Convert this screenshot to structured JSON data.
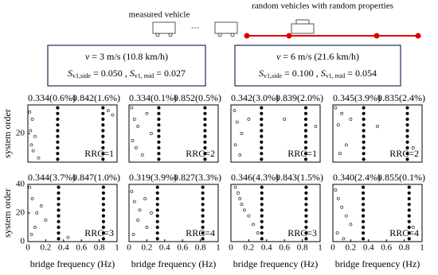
{
  "diagram": {
    "measured_label": "measured vehicle",
    "random_label": "random vehicles with random properties",
    "ellipsis": "···",
    "boxes": [
      {
        "line1": [
          "v",
          " = 3 m/s (10.8 km/h)"
        ],
        "line2": [
          "S",
          "v1,side",
          " = 0.050 , ",
          "S",
          "v1, mid",
          " = 0.027"
        ]
      },
      {
        "line1": [
          "v",
          " = 6 m/s (21.6 km/h)"
        ],
        "line2": [
          "S",
          "v1,side",
          " = 0.100 , ",
          "S",
          "v1, mid",
          " = 0.054"
        ]
      }
    ]
  },
  "chart_data": [
    {
      "type": "scatter",
      "ylabel": "system order",
      "annotations": [
        "0.334(0.6%)",
        "0.842(1.6%)"
      ],
      "rrc": "RRC=1",
      "xlim": [
        0,
        1
      ],
      "ylim": [
        0,
        40
      ],
      "yticks": [
        20
      ],
      "series": [
        {
          "marker": "filled",
          "color": "#000",
          "x": [
            0.334,
            0.334,
            0.334,
            0.334,
            0.334,
            0.334,
            0.334,
            0.334,
            0.334,
            0.334,
            0.842,
            0.842,
            0.842,
            0.842,
            0.842,
            0.842,
            0.842,
            0.842,
            0.842,
            0.842
          ],
          "y": [
            2,
            6,
            10,
            14,
            18,
            22,
            26,
            30,
            34,
            38,
            2,
            6,
            10,
            14,
            18,
            22,
            26,
            30,
            34,
            38
          ]
        },
        {
          "marker": "open",
          "color": "#000",
          "x": [
            0.02,
            0.05,
            0.03,
            0.08,
            0.04,
            0.06,
            0.12,
            0.9,
            0.95
          ],
          "y": [
            35,
            30,
            22,
            18,
            12,
            8,
            3,
            36,
            33
          ]
        }
      ]
    },
    {
      "type": "scatter",
      "annotations": [
        "0.334(0.1%)",
        "0.852(0.5%)"
      ],
      "rrc": "RRC=2",
      "xlim": [
        0,
        1
      ],
      "ylim": [
        0,
        40
      ],
      "series": [
        {
          "marker": "filled",
          "color": "#000",
          "x": [
            0.334,
            0.334,
            0.334,
            0.334,
            0.334,
            0.334,
            0.334,
            0.334,
            0.334,
            0.334,
            0.852,
            0.852,
            0.852,
            0.852,
            0.852,
            0.852,
            0.852,
            0.852,
            0.852,
            0.852
          ],
          "y": [
            2,
            6,
            10,
            14,
            18,
            22,
            26,
            30,
            34,
            38,
            2,
            6,
            10,
            14,
            18,
            22,
            26,
            30,
            34,
            38
          ]
        },
        {
          "marker": "open",
          "color": "#000",
          "x": [
            0.03,
            0.06,
            0.1,
            0.04,
            0.08,
            0.2,
            0.25,
            0.15
          ],
          "y": [
            38,
            30,
            25,
            15,
            10,
            34,
            20,
            5
          ]
        }
      ]
    },
    {
      "type": "scatter",
      "annotations": [
        "0.342(3.0%)",
        "0.839(2.0%)"
      ],
      "rrc": "RRC=1",
      "xlim": [
        0,
        1
      ],
      "ylim": [
        0,
        40
      ],
      "series": [
        {
          "marker": "filled",
          "color": "#000",
          "x": [
            0.342,
            0.342,
            0.342,
            0.342,
            0.342,
            0.342,
            0.342,
            0.342,
            0.342,
            0.342,
            0.839,
            0.839,
            0.839,
            0.839,
            0.839,
            0.839,
            0.839,
            0.839,
            0.839,
            0.839
          ],
          "y": [
            2,
            6,
            10,
            14,
            18,
            22,
            26,
            30,
            34,
            38,
            2,
            6,
            10,
            14,
            18,
            22,
            26,
            30,
            34,
            38
          ]
        },
        {
          "marker": "open",
          "color": "#000",
          "x": [
            0.04,
            0.07,
            0.12,
            0.05,
            0.2,
            0.1,
            0.6,
            0.95
          ],
          "y": [
            36,
            28,
            20,
            12,
            30,
            5,
            30,
            25
          ]
        }
      ]
    },
    {
      "type": "scatter",
      "annotations": [
        "0.345(3.9%)",
        "0.835(2.4%)"
      ],
      "rrc": "RRC=2",
      "xlim": [
        0,
        1
      ],
      "ylim": [
        0,
        40
      ],
      "series": [
        {
          "marker": "filled",
          "color": "#000",
          "x": [
            0.345,
            0.345,
            0.345,
            0.345,
            0.345,
            0.345,
            0.345,
            0.345,
            0.345,
            0.345,
            0.835,
            0.835,
            0.835,
            0.835,
            0.835,
            0.835,
            0.835,
            0.835,
            0.835,
            0.835
          ],
          "y": [
            2,
            6,
            10,
            14,
            18,
            22,
            26,
            30,
            34,
            38,
            2,
            6,
            10,
            14,
            18,
            22,
            26,
            30,
            34,
            38
          ]
        },
        {
          "marker": "open",
          "color": "#000",
          "x": [
            0.03,
            0.1,
            0.06,
            0.5,
            0.15,
            0.9,
            0.08,
            0.2
          ],
          "y": [
            38,
            34,
            26,
            25,
            12,
            10,
            6,
            30
          ]
        }
      ]
    },
    {
      "type": "scatter",
      "ylabel": "system order",
      "xlabel": "bridge frequency (Hz)",
      "annotations": [
        "0.344(3.7%)",
        "0.847(1.0%)"
      ],
      "rrc": "RRC=3",
      "xlim": [
        0,
        1
      ],
      "ylim": [
        0,
        40
      ],
      "yticks": [
        0,
        20,
        40
      ],
      "xticks": [
        0,
        0.2,
        0.4,
        0.6,
        0.8,
        1
      ],
      "series": [
        {
          "marker": "filled",
          "color": "#000",
          "x": [
            0.344,
            0.344,
            0.344,
            0.344,
            0.344,
            0.344,
            0.344,
            0.344,
            0.344,
            0.344,
            0.847,
            0.847,
            0.847,
            0.847,
            0.847,
            0.847,
            0.847,
            0.847,
            0.847,
            0.847
          ],
          "y": [
            2,
            6,
            10,
            14,
            18,
            22,
            26,
            30,
            34,
            38,
            2,
            6,
            10,
            14,
            18,
            22,
            26,
            30,
            34,
            38
          ]
        },
        {
          "marker": "open",
          "color": "#000",
          "x": [
            0.02,
            0.05,
            0.1,
            0.08,
            0.15,
            0.04,
            0.45,
            0.2
          ],
          "y": [
            38,
            30,
            20,
            10,
            25,
            5,
            3,
            15
          ]
        }
      ]
    },
    {
      "type": "scatter",
      "xlabel": "bridge frequency (Hz)",
      "annotations": [
        "0.319(3.9%)",
        "0.827(3.3%)"
      ],
      "rrc": "RRC=4",
      "xlim": [
        0,
        1
      ],
      "ylim": [
        0,
        40
      ],
      "xticks": [
        0,
        0.2,
        0.4,
        0.6,
        0.8,
        1
      ],
      "series": [
        {
          "marker": "filled",
          "color": "#000",
          "x": [
            0.319,
            0.319,
            0.319,
            0.319,
            0.319,
            0.319,
            0.319,
            0.319,
            0.319,
            0.319,
            0.827,
            0.827,
            0.827,
            0.827,
            0.827,
            0.827,
            0.827,
            0.827,
            0.827,
            0.827
          ],
          "y": [
            2,
            6,
            10,
            14,
            18,
            22,
            26,
            30,
            34,
            38,
            2,
            6,
            10,
            14,
            18,
            22,
            26,
            30,
            34,
            38
          ]
        },
        {
          "marker": "open",
          "color": "#000",
          "x": [
            0.03,
            0.06,
            0.12,
            0.18,
            0.2,
            0.1,
            0.05,
            0.25
          ],
          "y": [
            35,
            28,
            22,
            30,
            10,
            15,
            5,
            20
          ]
        }
      ]
    },
    {
      "type": "scatter",
      "xlabel": "bridge frequency (Hz)",
      "annotations": [
        "0.346(4.3%)",
        "0.843(1.5%)"
      ],
      "rrc": "RRC=3",
      "xlim": [
        0,
        1
      ],
      "ylim": [
        0,
        40
      ],
      "xticks": [
        0,
        0.2,
        0.4,
        0.6,
        0.8,
        1
      ],
      "series": [
        {
          "marker": "filled",
          "color": "#000",
          "x": [
            0.346,
            0.346,
            0.346,
            0.346,
            0.346,
            0.346,
            0.346,
            0.346,
            0.346,
            0.346,
            0.843,
            0.843,
            0.843,
            0.843,
            0.843,
            0.843,
            0.843,
            0.843,
            0.843,
            0.843
          ],
          "y": [
            2,
            6,
            10,
            14,
            18,
            22,
            26,
            30,
            34,
            38,
            2,
            6,
            10,
            14,
            18,
            22,
            26,
            30,
            34,
            38
          ]
        },
        {
          "marker": "open",
          "color": "#000",
          "x": [
            0.05,
            0.08,
            0.1,
            0.12,
            0.15,
            0.2,
            0.25,
            0.3
          ],
          "y": [
            38,
            34,
            30,
            26,
            22,
            18,
            12,
            6
          ]
        }
      ]
    },
    {
      "type": "scatter",
      "xlabel": "bridge frequency (Hz)",
      "annotations": [
        "0.340(2.4%)",
        "0.855(0.1%)"
      ],
      "rrc": "RRC=4",
      "xlim": [
        0,
        1
      ],
      "ylim": [
        0,
        40
      ],
      "xticks": [
        0,
        0.2,
        0.4,
        0.6,
        0.8,
        1
      ],
      "series": [
        {
          "marker": "filled",
          "color": "#000",
          "x": [
            0.34,
            0.34,
            0.34,
            0.34,
            0.34,
            0.34,
            0.34,
            0.34,
            0.34,
            0.34,
            0.855,
            0.855,
            0.855,
            0.855,
            0.855,
            0.855,
            0.855,
            0.855,
            0.855,
            0.855
          ],
          "y": [
            2,
            6,
            10,
            14,
            18,
            22,
            26,
            30,
            34,
            38,
            2,
            6,
            10,
            14,
            18,
            22,
            26,
            30,
            34,
            38
          ]
        },
        {
          "marker": "open",
          "color": "#000",
          "x": [
            0.03,
            0.06,
            0.1,
            0.15,
            0.2,
            0.05,
            0.9,
            0.12
          ],
          "y": [
            36,
            30,
            24,
            18,
            12,
            6,
            10,
            2
          ]
        }
      ]
    }
  ]
}
